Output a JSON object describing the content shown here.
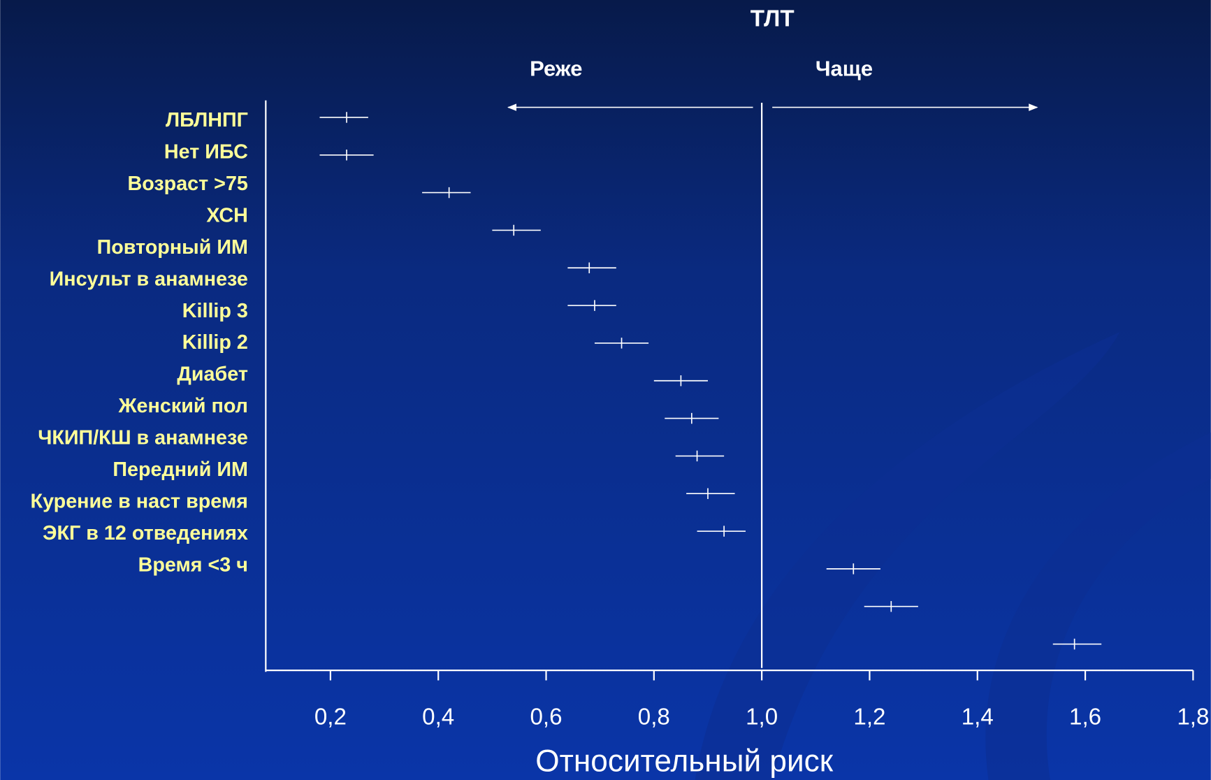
{
  "chart_data": {
    "type": "forest",
    "title": "ТЛТ",
    "left_label": "Реже",
    "right_label": "Чаще",
    "xlabel": "Относительный риск",
    "categories": [
      "ЛБЛНПГ",
      "Нет ИБС",
      "Возраст >75",
      "ХСН",
      "Повторный ИМ",
      "Инсульт в анамнезе",
      "Killip 3",
      "Killip 2",
      "Диабет",
      "Женский пол",
      "ЧКИП/КШ в анамнезе",
      "Передний ИМ",
      "Курение в наст время",
      "ЭКГ в 12 отведениях",
      "Время <3 ч"
    ],
    "values": [
      0.23,
      0.23,
      0.42,
      0.54,
      0.68,
      0.69,
      0.74,
      0.85,
      0.87,
      0.88,
      0.9,
      0.93,
      1.17,
      1.24,
      1.58
    ],
    "low": [
      0.18,
      0.18,
      0.37,
      0.5,
      0.64,
      0.64,
      0.69,
      0.8,
      0.82,
      0.84,
      0.86,
      0.88,
      1.12,
      1.19,
      1.54
    ],
    "high": [
      0.27,
      0.28,
      0.46,
      0.59,
      0.73,
      0.73,
      0.79,
      0.9,
      0.92,
      0.93,
      0.95,
      0.97,
      1.22,
      1.29,
      1.63
    ],
    "reference": 1,
    "xlim": [
      0.08,
      1.8
    ],
    "xticks": [
      {
        "value": 0.2,
        "label": "0,2"
      },
      {
        "value": 0.4,
        "label": "0,4"
      },
      {
        "value": 0.6,
        "label": "0,6"
      },
      {
        "value": 0.8,
        "label": "0,8"
      },
      {
        "value": 1,
        "label": "1,0"
      },
      {
        "value": 1.2,
        "label": "1,2"
      },
      {
        "value": 1.4,
        "label": "1,4"
      },
      {
        "value": 1.6,
        "label": "1,6"
      },
      {
        "value": 1.8,
        "label": "1,8"
      }
    ],
    "label_color": "#ffff99",
    "mark_color": "#ffffff"
  }
}
